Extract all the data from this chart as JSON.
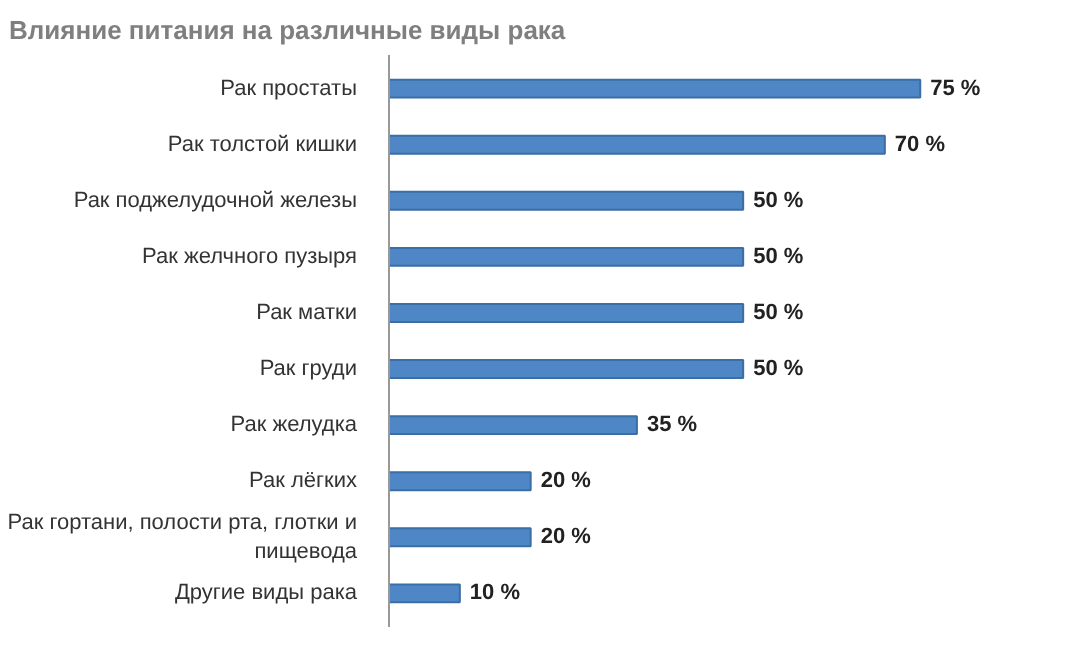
{
  "chart_data": {
    "type": "bar",
    "orientation": "horizontal",
    "title": "Влияние питания на различные виды рака",
    "categories": [
      "Рак простаты",
      "Рак толстой кишки",
      "Рак поджелудочной железы",
      "Рак желчного пузыря",
      "Рак матки",
      "Рак груди",
      "Рак желудка",
      "Рак лёгких",
      "Рак гортани, полости рта, глотки и пищевода",
      "Другие виды рака"
    ],
    "values": [
      75,
      70,
      50,
      50,
      50,
      50,
      35,
      20,
      20,
      10
    ],
    "value_labels": [
      "75 %",
      "70 %",
      "50 %",
      "50 %",
      "50 %",
      "50 %",
      "35 %",
      "20 %",
      "20 %",
      "10 %"
    ],
    "color": "#4f86c6",
    "grid": false,
    "tick_labels": "y"
  }
}
